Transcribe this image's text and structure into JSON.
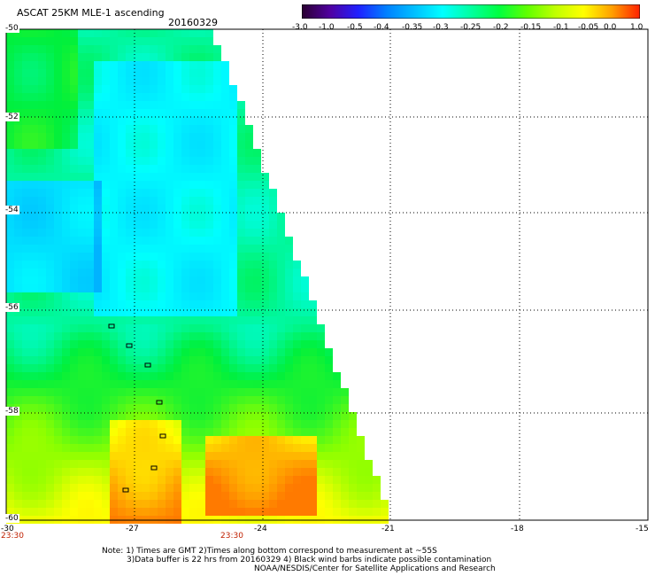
{
  "title": "ASCAT 25KM MLE-1 ascending",
  "date": "20160329",
  "colorbar": {
    "labels": [
      "-3.0",
      "-1.0",
      "-0.5",
      "-0.4",
      "-0.35",
      "-0.3",
      "-0.25",
      "-0.2",
      "-0.15",
      "-0.1",
      "-0.05",
      "0.0",
      "1.0"
    ],
    "colors": [
      "#2a0030",
      "#5000a0",
      "#2020ff",
      "#0080ff",
      "#00c0ff",
      "#00ffff",
      "#00ffa0",
      "#00ff40",
      "#60ff00",
      "#c0ff00",
      "#ffff00",
      "#ffa000",
      "#ff2000"
    ]
  },
  "map": {
    "lat_labels": [
      "-50",
      "-52",
      "-54",
      "-56",
      "-58",
      "-60"
    ],
    "lon_labels": [
      "-30",
      "-27",
      "-24",
      "-21",
      "-18",
      "-15"
    ],
    "time_labels": [
      "23:30",
      "23:30"
    ]
  },
  "notes": [
    "Note: 1) Times are GMT 2)Times along bottom correspond to measurement at ~55S",
    "3)Data buffer is 22 hrs from 20160329 4) Black wind barbs indicate possible contamination",
    "NOAA/NESDIS/Center for Satellite Applications and Research"
  ]
}
